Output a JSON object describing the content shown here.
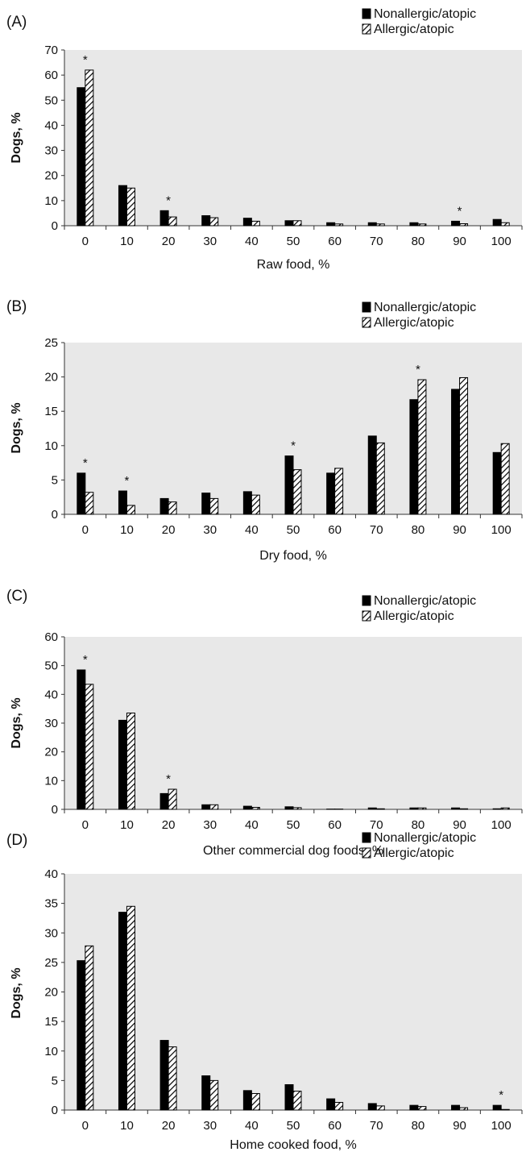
{
  "legend": {
    "series": [
      {
        "name": "Nonallergic/atopic",
        "pattern": "solid"
      },
      {
        "name": "Allergic/atopic",
        "pattern": "hatched"
      }
    ]
  },
  "colors": {
    "plot_bg": "#e8e8e8",
    "bar_solid": "#000000",
    "axis": "#333333"
  },
  "chart_data": [
    {
      "type": "bar",
      "panel_label": "(A)",
      "xlabel": "Raw food, %",
      "ylabel": "Dogs, %",
      "ylim": [
        0,
        70
      ],
      "yticks": [
        0,
        10,
        20,
        30,
        40,
        50,
        60,
        70
      ],
      "categories": [
        "0",
        "10",
        "20",
        "30",
        "40",
        "50",
        "60",
        "70",
        "80",
        "90",
        "100"
      ],
      "series": [
        {
          "name": "Nonallergic/atopic",
          "values": [
            55,
            16,
            6,
            4,
            3,
            2,
            1.2,
            1.2,
            1.2,
            1.8,
            2.5
          ]
        },
        {
          "name": "Allergic/atopic",
          "values": [
            62,
            15,
            3.5,
            3.2,
            1.8,
            2,
            0.7,
            0.7,
            0.7,
            0.8,
            1.2
          ]
        }
      ],
      "significant": [
        0,
        2,
        9
      ],
      "grid": false,
      "legend_position": "top-right"
    },
    {
      "type": "bar",
      "panel_label": "(B)",
      "xlabel": "Dry food, %",
      "ylabel": "Dogs, %",
      "ylim": [
        0,
        25
      ],
      "yticks": [
        0,
        5,
        10,
        15,
        20,
        25
      ],
      "categories": [
        "0",
        "10",
        "20",
        "30",
        "40",
        "50",
        "60",
        "70",
        "80",
        "90",
        "100"
      ],
      "series": [
        {
          "name": "Nonallergic/atopic",
          "values": [
            6,
            3.4,
            2.3,
            3.1,
            3.3,
            8.5,
            6,
            11.4,
            16.7,
            18.2,
            9
          ]
        },
        {
          "name": "Allergic/atopic",
          "values": [
            3.2,
            1.3,
            1.8,
            2.3,
            2.8,
            6.5,
            6.7,
            10.4,
            19.6,
            19.9,
            10.3
          ]
        }
      ],
      "significant": [
        0,
        1,
        5,
        8
      ],
      "grid": false,
      "legend_position": "top-right"
    },
    {
      "type": "bar",
      "panel_label": "(C)",
      "xlabel": "Other commercial dog foods, %",
      "ylabel": "Dogs, %",
      "ylim": [
        0,
        60
      ],
      "yticks": [
        0,
        10,
        20,
        30,
        40,
        50,
        60
      ],
      "categories": [
        "0",
        "10",
        "20",
        "30",
        "40",
        "50",
        "60",
        "70",
        "80",
        "90",
        "100"
      ],
      "series": [
        {
          "name": "Nonallergic/atopic",
          "values": [
            48.5,
            31,
            5.5,
            1.6,
            1.1,
            0.9,
            0.1,
            0.5,
            0.5,
            0.5,
            0.2
          ]
        },
        {
          "name": "Allergic/atopic",
          "values": [
            43.5,
            33.5,
            7,
            1.6,
            0.7,
            0.6,
            0.1,
            0.2,
            0.5,
            0.2,
            0.5
          ]
        }
      ],
      "significant": [
        0,
        2
      ],
      "grid": false,
      "legend_position": "top-right"
    },
    {
      "type": "bar",
      "panel_label": "(D)",
      "xlabel": "Home cooked food, %",
      "ylabel": "Dogs, %",
      "ylim": [
        0,
        40
      ],
      "yticks": [
        0,
        5,
        10,
        15,
        20,
        25,
        30,
        35,
        40
      ],
      "categories": [
        "0",
        "10",
        "20",
        "30",
        "40",
        "50",
        "60",
        "70",
        "80",
        "90",
        "100"
      ],
      "series": [
        {
          "name": "Nonallergic/atopic",
          "values": [
            25.3,
            33.5,
            11.8,
            5.8,
            3.3,
            4.3,
            1.9,
            1.1,
            0.8,
            0.8,
            0.8
          ]
        },
        {
          "name": "Allergic/atopic",
          "values": [
            27.8,
            34.5,
            10.7,
            5,
            2.8,
            3.2,
            1.3,
            0.7,
            0.6,
            0.4,
            0.1
          ]
        }
      ],
      "significant": [
        10
      ],
      "grid": false,
      "legend_position": "top-right"
    }
  ]
}
